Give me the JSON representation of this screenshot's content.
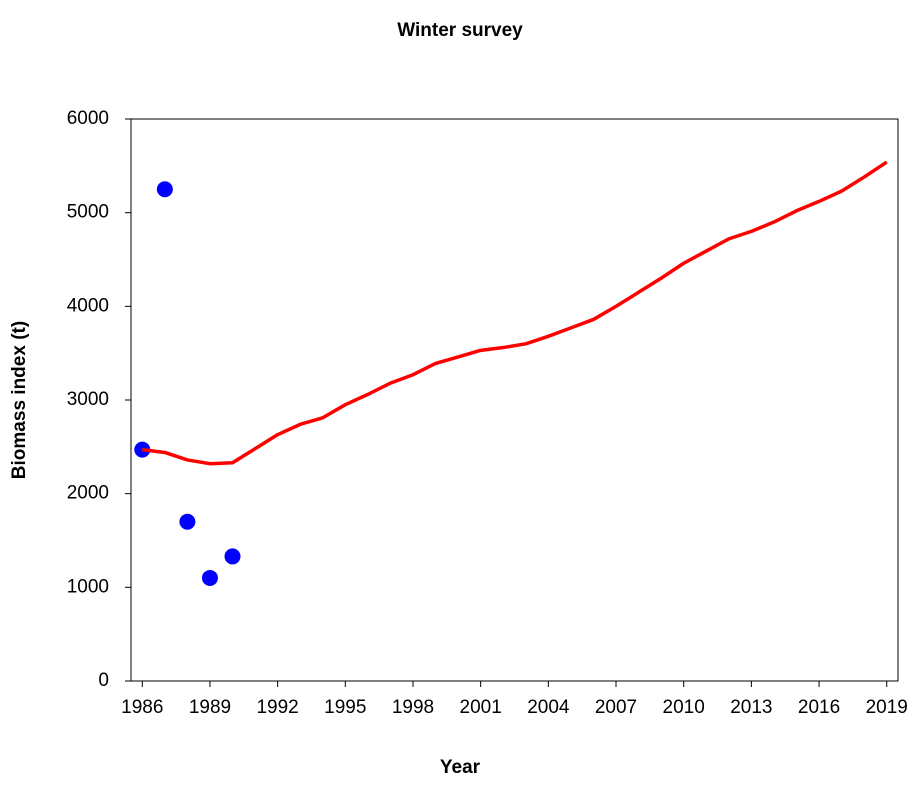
{
  "chart_data": {
    "type": "line",
    "title": "Winter survey",
    "x_label": "Year",
    "y_label": "Biomass index (t)",
    "x": [
      1986,
      1987,
      1988,
      1989,
      1990,
      1991,
      1992,
      1993,
      1994,
      1995,
      1996,
      1997,
      1998,
      1999,
      2000,
      2001,
      2002,
      2003,
      2004,
      2005,
      2006,
      2007,
      2008,
      2009,
      2010,
      2011,
      2012,
      2013,
      2014,
      2015,
      2016,
      2017,
      2018,
      2019
    ],
    "series": [
      {
        "kind": "scatter",
        "color": "#0000ff",
        "values": [
          2470,
          5250,
          1700,
          1100,
          1330,
          null,
          null,
          null,
          null,
          null,
          null,
          null,
          null,
          null,
          null,
          null,
          null,
          null,
          null,
          null,
          null,
          null,
          null,
          null,
          null,
          null,
          null,
          null,
          null,
          null,
          null,
          null,
          null,
          null
        ]
      },
      {
        "kind": "line",
        "color": "#ff0000",
        "values": [
          2470,
          2440,
          2360,
          2320,
          2330,
          2480,
          2630,
          2740,
          2810,
          2950,
          3060,
          3180,
          3270,
          3390,
          3460,
          3530,
          3560,
          3600,
          3680,
          3770,
          3860,
          4000,
          4150,
          4300,
          4460,
          4590,
          4720,
          4800,
          4900,
          5020,
          5120,
          5230,
          5380,
          5540
        ]
      }
    ],
    "xlim": [
      1985.5,
      2019.5
    ],
    "xticks": [
      1986,
      1989,
      1992,
      1995,
      1998,
      2001,
      2004,
      2007,
      2010,
      2013,
      2016,
      2019
    ],
    "ylim": [
      0,
      6000
    ],
    "yticks": [
      0,
      1000,
      2000,
      3000,
      4000,
      5000,
      6000
    ]
  }
}
